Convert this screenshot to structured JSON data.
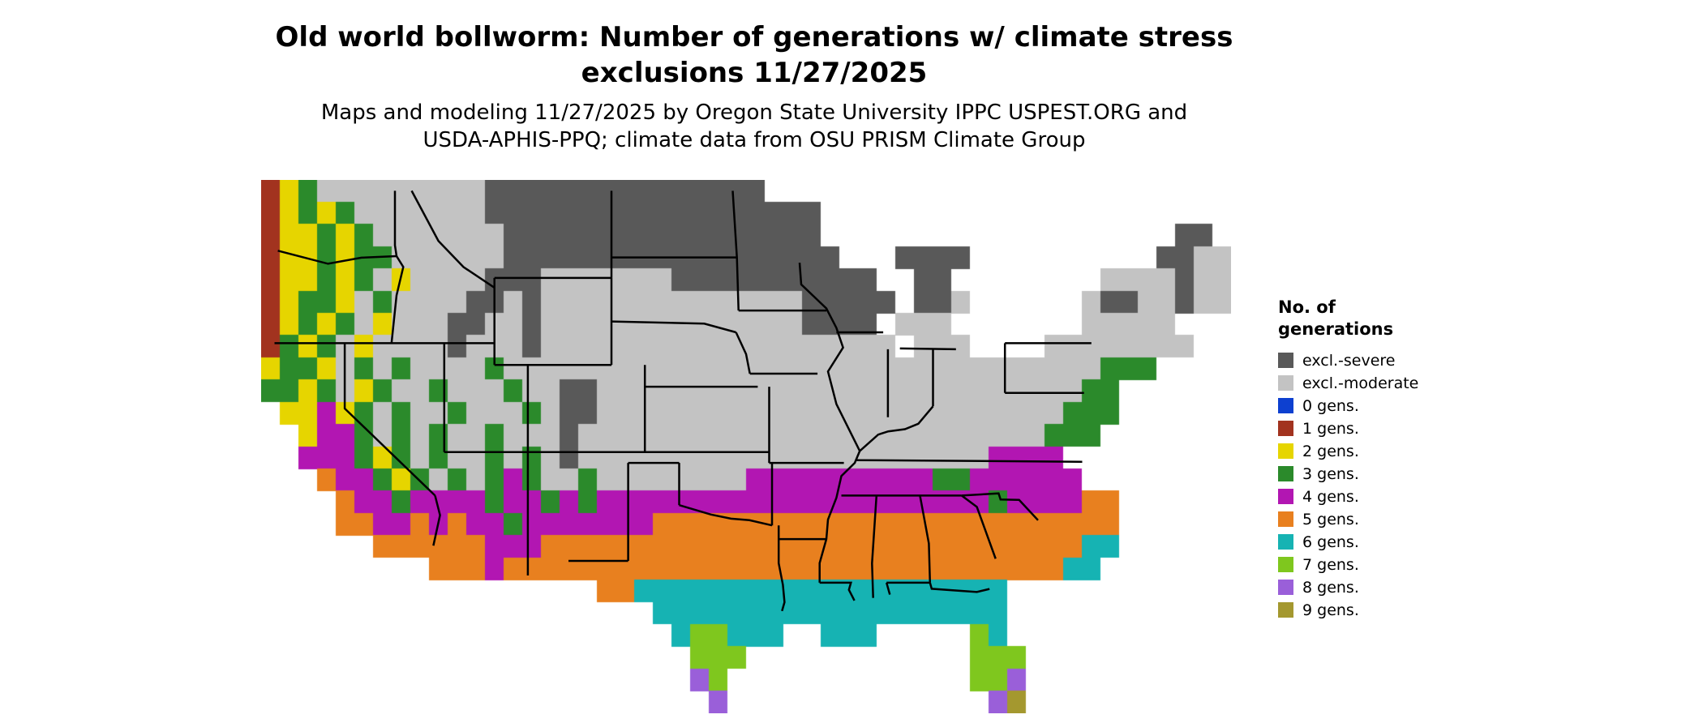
{
  "title": {
    "line1": "Old world bollworm: Number of generations w/ climate stress",
    "line2": "exclusions 11/27/2025"
  },
  "subtitle": {
    "line1": "Maps and modeling 11/27/2025 by Oregon State University IPPC USPEST.ORG and",
    "line2": "USDA-APHIS-PPQ; climate data from OSU PRISM Climate Group"
  },
  "legend": {
    "title_line1": "No. of",
    "title_line2": "generations",
    "items": [
      {
        "label": "excl.-severe",
        "color": "#595959",
        "code": "S"
      },
      {
        "label": "excl.-moderate",
        "color": "#c3c3c3",
        "code": "M"
      },
      {
        "label": "0 gens.",
        "color": "#0d40d0",
        "code": "0"
      },
      {
        "label": "1 gens.",
        "color": "#a2331f",
        "code": "1"
      },
      {
        "label": "2 gens.",
        "color": "#e6d500",
        "code": "2"
      },
      {
        "label": "3 gens.",
        "color": "#2b8a2b",
        "code": "3"
      },
      {
        "label": "4 gens.",
        "color": "#b216b2",
        "code": "4"
      },
      {
        "label": "5 gens.",
        "color": "#e8801f",
        "code": "5"
      },
      {
        "label": "6 gens.",
        "color": "#16b3b3",
        "code": "6"
      },
      {
        "label": "7 gens.",
        "color": "#7fc71e",
        "code": "7"
      },
      {
        "label": "8 gens.",
        "color": "#9a5fd9",
        "code": "8"
      },
      {
        "label": "9 gens.",
        "color": "#a4982f",
        "code": "9"
      }
    ]
  },
  "map_data": {
    "type": "choropleth-raster",
    "region": "Continental United States",
    "cols": 52,
    "rows": 24,
    "empty_char": ".",
    "bounds": {
      "lon_min": -125,
      "lon_max": -67,
      "lat_min": 25,
      "lat_max": 49.5
    },
    "border_color": "#000000",
    "grid": [
      "123MMMMMMMMMSSSSSSSSSSSSSSS",
      "12323MMMMMMMSSSSSSSSSSSSSSSSSS",
      "122323MMMMMMMSSSSSSSSSSSSSSSSS...................SS",
      "1223233MMMMMMSSSSSSSSSSSSSSSSSS...SSSS..........SSMM",
      "122323M2MMMMSSSMMMMMMMSSSSSSSSSSS..SS........MMMMSMM",
      "12332M3MMMMSSMSMMMMMMMMMMMMMMSSSSS.SSM......MSSMMSMM",
      "12323M2MMMSSMMSMMMMMMMMMMMMMMSSSS.MMM.......MMMMM",
      "1323M2MMMMSMMMSMMMMMMMMMMMMMMMMMMM.MMM....MMMMMMMM",
      "2332M3M3MMMM3MMMMMMMMMMMMMMMMMMMMMMMMMMMMMMMM333",
      "3323M23MM3MMM3MMSSMMMMMMMMMMMMMMMMMMMMMMMMMM33",
      ".22423M3MM3MMM3MSSMMMMMMMMMMMMMMMMMMMMMMMMM333",
      "..2443M3M3MM3MMMSMMMMMMMMMMMMMMMMMMMMMMMMM333",
      "..444323M3MM3M3MSMMMMMMMMMMMMMMMMMMMMMM4444",
      "...544323M3M343MM3MMMMMMMM444444444433444444",
      "....544344443443434444444444444444444443444455",
      "....554454544344444445555555555555555555555555",
      "......5555554445555555555555555555555555555566",
      ".........555455555555555555555555555555555566",
      "..................5566666666666666666666",
      ".....................6666666666666666666",
      "......................677666..666.....76",
      ".......................777............777",
      ".......................87.............778",
      "........................8..............89"
    ],
    "state_borders": [
      [
        [
          -117,
          49
        ],
        [
          -117,
          46.5
        ],
        [
          -116.9,
          46
        ]
      ],
      [
        [
          -124,
          46.25
        ],
        [
          -121,
          45.65
        ],
        [
          -119,
          45.93
        ],
        [
          -116.9,
          46
        ]
      ],
      [
        [
          -116.9,
          46
        ],
        [
          -116.5,
          45.5
        ],
        [
          -116.9,
          44.2
        ],
        [
          -117.2,
          42
        ]
      ],
      [
        [
          -124.2,
          42
        ],
        [
          -111.05,
          42
        ]
      ],
      [
        [
          -120,
          42
        ],
        [
          -120,
          39
        ],
        [
          -114.6,
          35
        ]
      ],
      [
        [
          -114.6,
          35
        ],
        [
          -114.3,
          34.1
        ],
        [
          -114.7,
          32.7
        ]
      ],
      [
        [
          -116,
          49
        ],
        [
          -114.4,
          46.7
        ],
        [
          -112.9,
          45.5
        ],
        [
          -111.05,
          44.55
        ]
      ],
      [
        [
          -111.05,
          45
        ],
        [
          -104.05,
          45
        ]
      ],
      [
        [
          -111.05,
          45
        ],
        [
          -111.05,
          41
        ]
      ],
      [
        [
          -111.05,
          41
        ],
        [
          -104.05,
          41
        ]
      ],
      [
        [
          -104.05,
          45
        ],
        [
          -104.05,
          41
        ]
      ],
      [
        [
          -104.05,
          49
        ],
        [
          -104.05,
          45
        ]
      ],
      [
        [
          -104.05,
          45.94
        ],
        [
          -96.6,
          45.94
        ]
      ],
      [
        [
          -104.05,
          43
        ],
        [
          -98.5,
          42.9
        ],
        [
          -96.6,
          42.5
        ]
      ],
      [
        [
          -102.05,
          41
        ],
        [
          -102.05,
          37
        ]
      ],
      [
        [
          -102.05,
          40
        ],
        [
          -95.3,
          40
        ]
      ],
      [
        [
          -114.05,
          37
        ],
        [
          -94.62,
          37
        ]
      ],
      [
        [
          -114.05,
          42
        ],
        [
          -114.05,
          37
        ]
      ],
      [
        [
          -109.05,
          41
        ],
        [
          -109.05,
          31.33
        ]
      ],
      [
        [
          -103.05,
          36.5
        ],
        [
          -103.05,
          32
        ]
      ],
      [
        [
          -103.05,
          32
        ],
        [
          -106.62,
          32
        ]
      ],
      [
        [
          -103.05,
          36.5
        ],
        [
          -100,
          36.5
        ]
      ],
      [
        [
          -100,
          36.5
        ],
        [
          -100,
          34.56
        ]
      ],
      [
        [
          -100,
          34.56
        ],
        [
          -98.1,
          34.13
        ],
        [
          -96.9,
          33.94
        ],
        [
          -95.8,
          33.87
        ],
        [
          -94.45,
          33.63
        ]
      ],
      [
        [
          -94.45,
          36.5
        ],
        [
          -94.45,
          33.63
        ]
      ],
      [
        [
          -94.62,
          40
        ],
        [
          -94.62,
          36.5
        ]
      ],
      [
        [
          -94.62,
          36.5
        ],
        [
          -90.15,
          36.5
        ]
      ],
      [
        [
          -95.77,
          40.6
        ],
        [
          -91.73,
          40.6
        ]
      ],
      [
        [
          -96.45,
          43.5
        ],
        [
          -91.2,
          43.5
        ]
      ],
      [
        [
          -96.8,
          49
        ],
        [
          -96.55,
          45.94
        ],
        [
          -96.45,
          43.5
        ]
      ],
      [
        [
          -96.6,
          42.5
        ],
        [
          -96,
          41.5
        ],
        [
          -95.77,
          40.6
        ]
      ],
      [
        [
          -92.8,
          45.7
        ],
        [
          -92.7,
          44.7
        ],
        [
          -91.2,
          43.6
        ],
        [
          -90.6,
          42.7
        ],
        [
          -90.2,
          41.8
        ],
        [
          -91.1,
          40.7
        ],
        [
          -90.6,
          39.2
        ],
        [
          -89.2,
          37.05
        ],
        [
          -89.5,
          36.5
        ],
        [
          -90.3,
          35.9
        ],
        [
          -90.6,
          34.9
        ],
        [
          -91.1,
          33.9
        ],
        [
          -91.2,
          33
        ],
        [
          -91.6,
          31.9
        ],
        [
          -91.6,
          31
        ]
      ],
      [
        [
          -90.6,
          42.5
        ],
        [
          -87.8,
          42.5
        ]
      ],
      [
        [
          -87.52,
          41.72
        ],
        [
          -87.52,
          38.6
        ]
      ],
      [
        [
          -84.82,
          41.7
        ],
        [
          -84.82,
          39.1
        ]
      ],
      [
        [
          -86.8,
          41.76
        ],
        [
          -83.45,
          41.72
        ]
      ],
      [
        [
          -80.52,
          42
        ],
        [
          -80.52,
          39.72
        ]
      ],
      [
        [
          -80.52,
          42
        ],
        [
          -75.35,
          42
        ]
      ],
      [
        [
          -80.52,
          39.72
        ],
        [
          -75.79,
          39.72
        ]
      ],
      [
        [
          -84.82,
          39.1
        ],
        [
          -85.7,
          38.3
        ],
        [
          -86.5,
          38.05
        ],
        [
          -87.5,
          37.95
        ],
        [
          -88.1,
          37.8
        ],
        [
          -89.2,
          37.05
        ]
      ],
      [
        [
          -89.4,
          36.63
        ],
        [
          -83.68,
          36.6
        ]
      ],
      [
        [
          -83.68,
          36.6
        ],
        [
          -75.9,
          36.55
        ]
      ],
      [
        [
          -90.3,
          35
        ],
        [
          -83.11,
          35
        ]
      ],
      [
        [
          -88.2,
          34.99
        ],
        [
          -88.47,
          31.89
        ],
        [
          -88.4,
          30.3
        ]
      ],
      [
        [
          -85.6,
          34.99
        ],
        [
          -85.07,
          32.8
        ],
        [
          -85,
          31
        ]
      ],
      [
        [
          -87.6,
          31
        ],
        [
          -85,
          31
        ]
      ],
      [
        [
          -85,
          31
        ],
        [
          -84.9,
          30.72
        ],
        [
          -82.2,
          30.57
        ],
        [
          -81.44,
          30.71
        ]
      ],
      [
        [
          -87.6,
          31
        ],
        [
          -87.4,
          30.45
        ]
      ],
      [
        [
          -83.11,
          35
        ],
        [
          -82.2,
          34.48
        ],
        [
          -81.08,
          32.1
        ]
      ],
      [
        [
          -83.11,
          35
        ],
        [
          -80.9,
          35.1
        ],
        [
          -80.78,
          34.82
        ],
        [
          -79.67,
          34.8
        ],
        [
          -78.54,
          33.87
        ]
      ],
      [
        [
          -91.6,
          31
        ],
        [
          -89.73,
          31
        ],
        [
          -89.85,
          30.67
        ],
        [
          -89.52,
          30.18
        ]
      ],
      [
        [
          -94.05,
          33
        ],
        [
          -91.2,
          33
        ]
      ],
      [
        [
          -94.05,
          33.63
        ],
        [
          -94.05,
          31.9
        ],
        [
          -93.8,
          30.9
        ],
        [
          -93.7,
          30.1
        ],
        [
          -93.85,
          29.7
        ]
      ]
    ]
  }
}
